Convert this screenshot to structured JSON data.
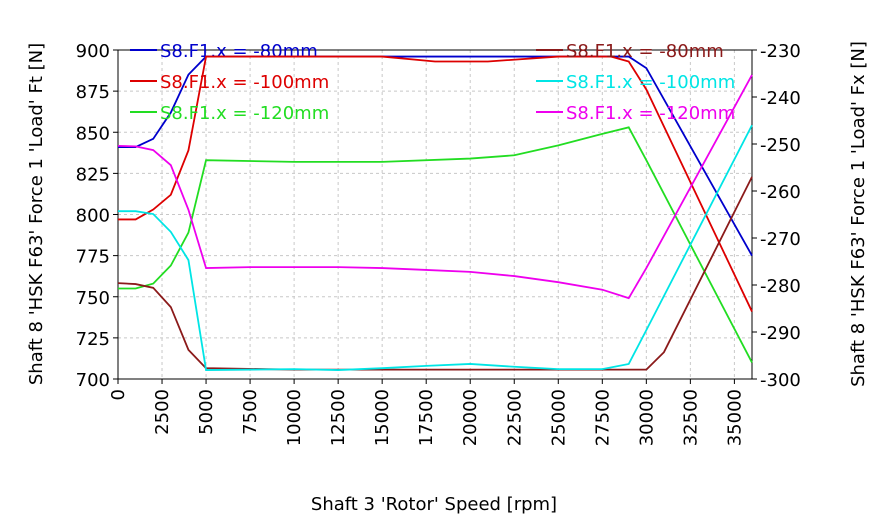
{
  "chart_data": {
    "type": "line",
    "xlabel": "Shaft 3 'Rotor' Speed [rpm]",
    "ylabel": "Shaft 8 'HSK F63' Force 1 'Load' Ft [N]",
    "y2label": "Shaft 8 'HSK F63' Force 1 'Load' Fx [N]",
    "xlim": [
      0,
      36000
    ],
    "xticks": [
      0,
      2500,
      5000,
      7500,
      10000,
      12500,
      15000,
      17500,
      20000,
      22500,
      25000,
      27500,
      30000,
      32500,
      35000
    ],
    "ylim": [
      700,
      900
    ],
    "yticks": [
      700,
      725,
      750,
      775,
      800,
      825,
      850,
      875,
      900
    ],
    "y2lim": [
      -300,
      -230
    ],
    "y2ticks": [
      -300,
      -290,
      -280,
      -270,
      -260,
      -250,
      -240,
      -230
    ],
    "grid": true,
    "series": [
      {
        "name": "S8.F1.x = -80mm",
        "color": "#0000cc",
        "axis": "y",
        "x": [
          0,
          1000,
          2000,
          3000,
          4000,
          5000,
          10000,
          15000,
          20000,
          25000,
          29000,
          30000,
          36000
        ],
        "values": [
          841,
          841,
          846,
          862,
          885,
          896,
          896,
          896,
          896,
          896,
          896,
          889,
          775
        ]
      },
      {
        "name": "S8.F1.x = -100mm",
        "color": "#dd0000",
        "axis": "y",
        "x": [
          0,
          1000,
          2000,
          3000,
          4000,
          5000,
          10000,
          15000,
          18000,
          21000,
          25000,
          28000,
          29000,
          30000,
          36000
        ],
        "values": [
          797,
          797,
          803,
          812,
          839,
          896,
          896,
          896,
          893,
          893,
          896,
          896,
          893,
          876,
          741
        ]
      },
      {
        "name": "S8.F1.x = -120mm",
        "color": "#22dd22",
        "axis": "y",
        "x": [
          0,
          1000,
          2000,
          3000,
          4000,
          5000,
          10000,
          15000,
          20000,
          22500,
          25000,
          27500,
          29000,
          30000,
          36000
        ],
        "values": [
          755,
          755,
          758,
          769,
          789,
          833,
          832,
          832,
          834,
          836,
          842,
          849,
          853,
          833,
          710
        ]
      },
      {
        "name": "S8.F1.x = -80mm",
        "color": "#8b1a1a",
        "axis": "y2",
        "x": [
          0,
          1000,
          2000,
          3000,
          4000,
          5000,
          10000,
          20000,
          30000,
          31000,
          36000
        ],
        "values": [
          -279.6,
          -279.8,
          -280.6,
          -284.7,
          -293.8,
          -297.7,
          -298,
          -298,
          -298,
          -294.3,
          -257
        ]
      },
      {
        "name": "S8.F1.x = -100mm",
        "color": "#00e5e5",
        "axis": "y2",
        "x": [
          0,
          1000,
          2000,
          3000,
          4000,
          5000,
          10000,
          12500,
          15000,
          17500,
          20000,
          22500,
          25000,
          27500,
          29000,
          30000,
          36000
        ],
        "values": [
          -264.3,
          -264.3,
          -264.9,
          -268.7,
          -274.7,
          -298.1,
          -297.9,
          -298.1,
          -297.7,
          -297.2,
          -296.8,
          -297.4,
          -297.9,
          -297.9,
          -296.8,
          -289.6,
          -246
        ]
      },
      {
        "name": "S8.F1.x = -120mm",
        "color": "#ee00ee",
        "axis": "y2",
        "x": [
          0,
          1000,
          2000,
          3000,
          4000,
          5000,
          7500,
          12500,
          15000,
          17500,
          20000,
          22500,
          25000,
          27500,
          29000,
          30000,
          36000
        ],
        "values": [
          -250.4,
          -250.5,
          -251.3,
          -254.5,
          -264,
          -276.4,
          -276.2,
          -276.2,
          -276.4,
          -276.8,
          -277.2,
          -278.1,
          -279.4,
          -281,
          -282.8,
          -276.4,
          -235.3
        ]
      }
    ]
  }
}
